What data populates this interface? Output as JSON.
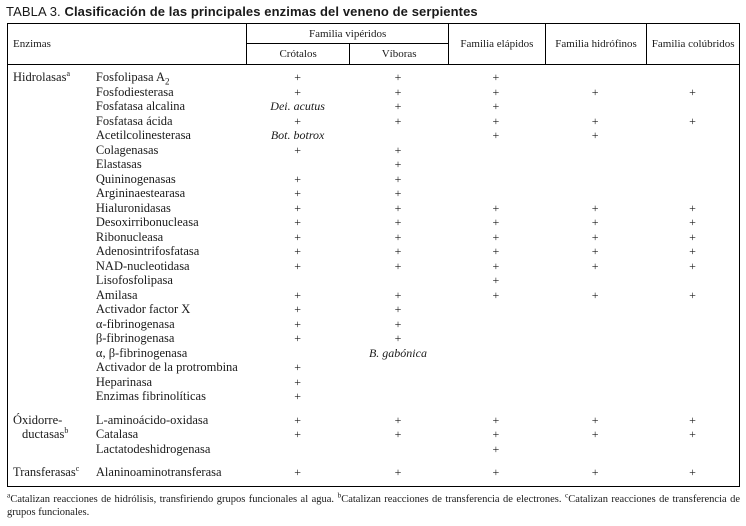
{
  "title": {
    "prefix": "TABLA 3.",
    "text": "Clasificación de las principales enzimas del veneno de serpientes"
  },
  "header": {
    "enzymes_col": "Enzimas",
    "viperid_group": "Familia vipéridos",
    "viperid_sub": [
      "Crótalos",
      "Víboras"
    ],
    "other_cols": [
      "Familia elápidos",
      "Familia hidrófinos",
      "Familia colúbridos"
    ]
  },
  "column_keys": [
    "crotalos",
    "viboras",
    "elapidos",
    "hidrofinos",
    "colubridos"
  ],
  "groups": [
    {
      "label_lines": [
        {
          "text": "Hidrolasas",
          "sup": "a",
          "indent": false
        }
      ],
      "rows": [
        {
          "enzyme": "Fosfolipasa A",
          "sub": "2",
          "cells": [
            "+",
            "+",
            "+",
            "",
            ""
          ]
        },
        {
          "enzyme": "Fosfodiesterasa",
          "cells": [
            "+",
            "+",
            "+",
            "+",
            "+"
          ]
        },
        {
          "enzyme": "Fosfatasa alcalina",
          "cells": [
            "Dei. acutus",
            "+",
            "+",
            "",
            ""
          ]
        },
        {
          "enzyme": "Fosfatasa ácida",
          "cells": [
            "+",
            "+",
            "+",
            "+",
            "+"
          ]
        },
        {
          "enzyme": "Acetilcolinesterasa",
          "cells": [
            "Bot. botrox",
            "",
            "+",
            "+",
            ""
          ]
        },
        {
          "enzyme": "Colagenasas",
          "cells": [
            "+",
            "+",
            "",
            "",
            ""
          ]
        },
        {
          "enzyme": "Elastasas",
          "cells": [
            "",
            "+",
            "",
            "",
            ""
          ]
        },
        {
          "enzyme": "Quininogenasas",
          "cells": [
            "+",
            "+",
            "",
            "",
            ""
          ]
        },
        {
          "enzyme": "Argininaestearasa",
          "cells": [
            "+",
            "+",
            "",
            "",
            ""
          ]
        },
        {
          "enzyme": "Hialuronidasas",
          "cells": [
            "+",
            "+",
            "+",
            "+",
            "+"
          ]
        },
        {
          "enzyme": "Desoxirribonucleasa",
          "cells": [
            "+",
            "+",
            "+",
            "+",
            "+"
          ]
        },
        {
          "enzyme": "Ribonucleasa",
          "cells": [
            "+",
            "+",
            "+",
            "+",
            "+"
          ]
        },
        {
          "enzyme": "Adenosintrifosfatasa",
          "cells": [
            "+",
            "+",
            "+",
            "+",
            "+"
          ]
        },
        {
          "enzyme": "NAD-nucleotidasa",
          "cells": [
            "+",
            "+",
            "+",
            "+",
            "+"
          ]
        },
        {
          "enzyme": "Lisofosfolipasa",
          "cells": [
            "",
            "",
            "+",
            "",
            ""
          ]
        },
        {
          "enzyme": "Amilasa",
          "cells": [
            "+",
            "+",
            "+",
            "+",
            "+"
          ]
        },
        {
          "enzyme": "Activador factor X",
          "cells": [
            "+",
            "+",
            "",
            "",
            ""
          ]
        },
        {
          "enzyme": "α-fibrinogenasa",
          "cells": [
            "+",
            "+",
            "",
            "",
            ""
          ]
        },
        {
          "enzyme": "β-fibrinogenasa",
          "cells": [
            "+",
            "+",
            "",
            "",
            ""
          ]
        },
        {
          "enzyme": "α, β-fibrinogenasa",
          "cells": [
            "",
            "B. gabónica",
            "",
            "",
            ""
          ]
        },
        {
          "enzyme": "Activador de la protrombina",
          "cells": [
            "+",
            "",
            "",
            "",
            ""
          ]
        },
        {
          "enzyme": "Heparinasa",
          "cells": [
            "+",
            "",
            "",
            "",
            ""
          ]
        },
        {
          "enzyme": "Enzimas fibrinolíticas",
          "cells": [
            "+",
            "",
            "",
            "",
            ""
          ]
        }
      ]
    },
    {
      "label_lines": [
        {
          "text": "Óxidorre-",
          "sup": "",
          "indent": false
        },
        {
          "text": "ductasas",
          "sup": "b",
          "indent": true
        }
      ],
      "rows": [
        {
          "enzyme": "L-aminoácido-oxidasa",
          "cells": [
            "+",
            "+",
            "+",
            "+",
            "+"
          ]
        },
        {
          "enzyme": "Catalasa",
          "cells": [
            "+",
            "+",
            "+",
            "+",
            "+"
          ]
        },
        {
          "enzyme": "Lactatodeshidrogenasa",
          "cells": [
            "",
            "",
            "+",
            "",
            ""
          ]
        }
      ]
    },
    {
      "label_lines": [
        {
          "text": "Transferasas",
          "sup": "c",
          "indent": false
        }
      ],
      "rows": [
        {
          "enzyme": "Alaninoaminotransferasa",
          "cells": [
            "+",
            "+",
            "+",
            "+",
            "+"
          ]
        }
      ]
    }
  ],
  "footnote": {
    "parts": [
      {
        "sup": "a",
        "text": "Catalizan reacciones de hidrólisis, transfiriendo grupos funcionales al agua. "
      },
      {
        "sup": "b",
        "text": "Catalizan reacciones de transferencia de electrones. "
      },
      {
        "sup": "c",
        "text": "Catalizan reacciones de transferencia de grupos funcionales."
      }
    ]
  },
  "colors": {
    "text": "#1a1a1a",
    "border": "#000000",
    "background": "#ffffff"
  }
}
